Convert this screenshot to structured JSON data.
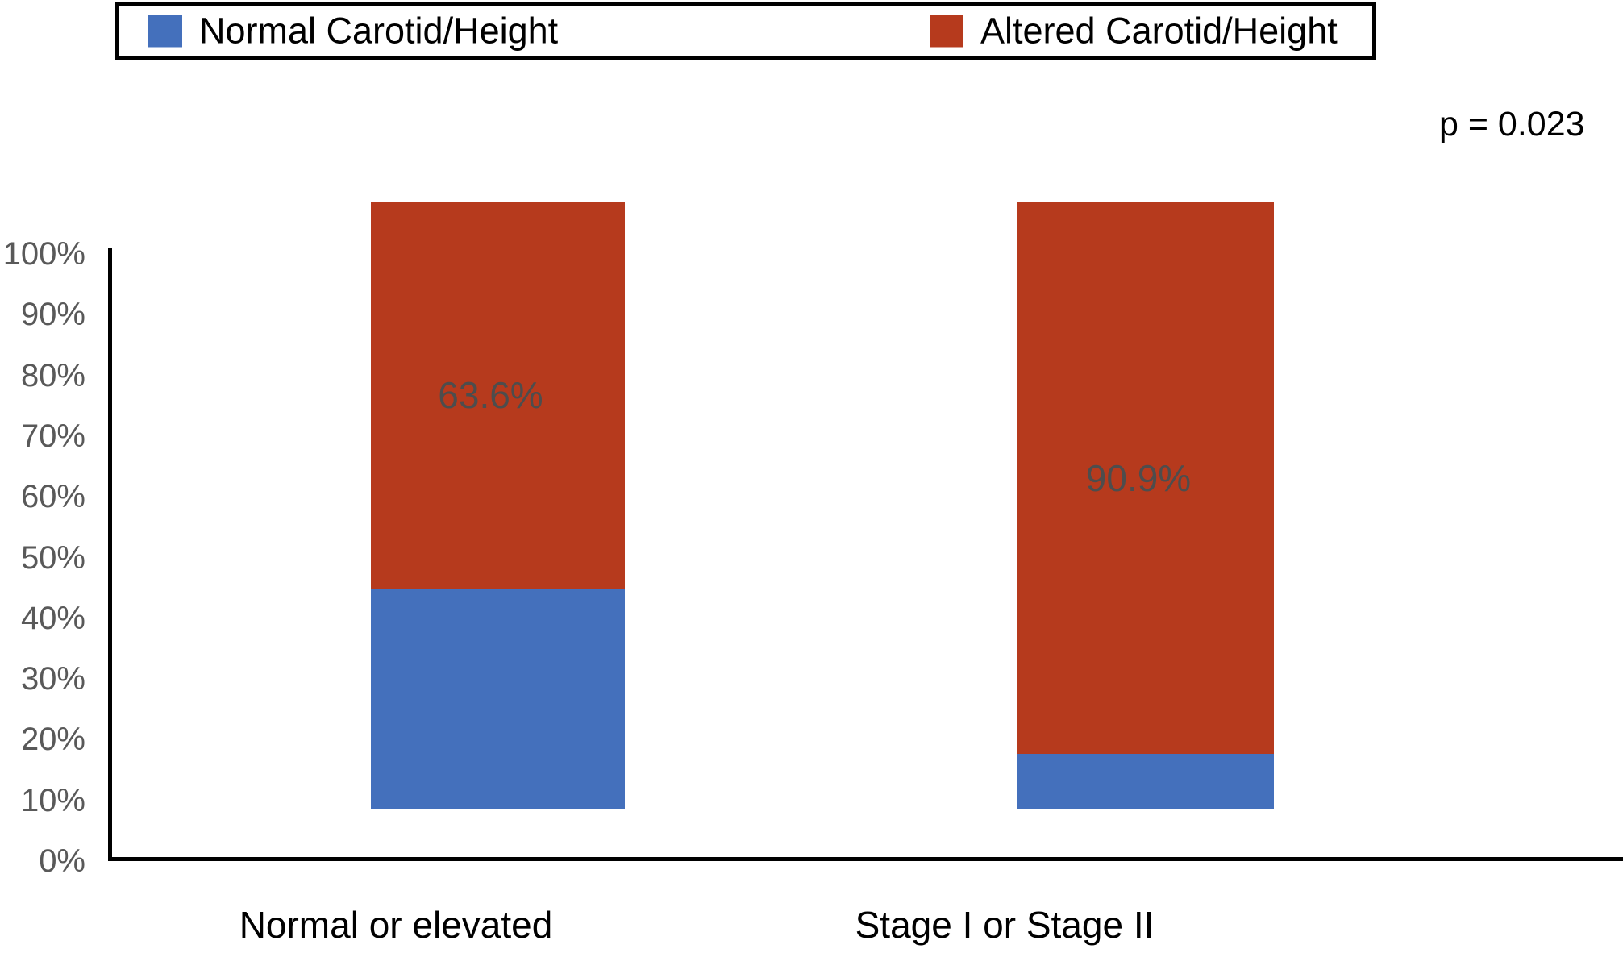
{
  "legend": {
    "items": [
      {
        "label": "Normal Carotid/Height",
        "color": "#4470BC"
      },
      {
        "label": "Altered Carotid/Height",
        "color": "#B63A1D"
      }
    ]
  },
  "annotation": {
    "p_value_text": "p = 0.023"
  },
  "y_axis": {
    "tick_labels": [
      "0%",
      "10%",
      "20%",
      "30%",
      "40%",
      "50%",
      "60%",
      "70%",
      "80%",
      "90%",
      "100%"
    ]
  },
  "chart_data": {
    "type": "bar",
    "stacked": true,
    "categories": [
      "Normal or elevated",
      "Stage I or Stage II"
    ],
    "series": [
      {
        "name": "Normal Carotid/Height",
        "color": "#4470BC",
        "values": [
          36.4,
          9.1
        ]
      },
      {
        "name": "Altered Carotid/Height",
        "color": "#B63A1D",
        "values": [
          63.6,
          90.9
        ]
      }
    ],
    "data_labels": [
      "63.6%",
      "90.9%"
    ],
    "data_label_series": "Altered Carotid/Height",
    "ylim": [
      0,
      100
    ],
    "y_tick_step": 10,
    "grid": false,
    "legend_position": "top",
    "annotations": [
      "p = 0.023"
    ],
    "bar_baseline_offset_pct": 8.5
  },
  "colors": {
    "axis": "#000000",
    "tick_label": "#595959",
    "data_label": "#4d4d4d",
    "category_label": "#000000"
  }
}
